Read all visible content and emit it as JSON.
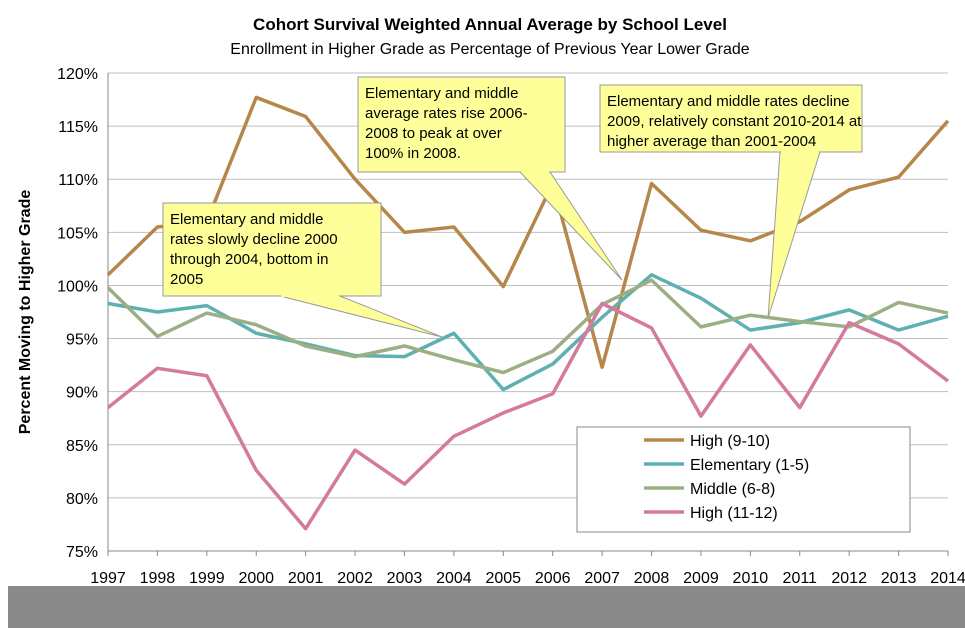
{
  "chart_data": {
    "type": "line",
    "title": "Cohort Survival Weighted Annual Average by School Level",
    "subtitle": "Enrollment in Higher Grade as Percentage of Previous Year Lower Grade",
    "y_label": "Percent Moving to Higher Grade",
    "categories": [
      "1997",
      "1998",
      "1999",
      "2000",
      "2001",
      "2002",
      "2003",
      "2004",
      "2005",
      "2006",
      "2007",
      "2008",
      "2009",
      "2010",
      "2011",
      "2012",
      "2013",
      "2014"
    ],
    "series": [
      {
        "name": "High (9-10)",
        "color": "#b5874a",
        "values": [
          101,
          105.5,
          106,
          117.7,
          115.9,
          110,
          105,
          105.5,
          99.9,
          109.6,
          92.3,
          109.6,
          105.2,
          104.2,
          106,
          109,
          110.2,
          115.5
        ]
      },
      {
        "name": "Elementary (1-5)",
        "color": "#5fb0b0",
        "values": [
          98.3,
          97.5,
          98.1,
          95.5,
          94.5,
          93.4,
          93.3,
          95.5,
          90.2,
          92.6,
          97,
          101,
          98.8,
          95.8,
          96.5,
          97.7,
          95.8,
          97.1
        ]
      },
      {
        "name": "Middle (6-8)",
        "color": "#9caf84",
        "values": [
          99.8,
          95.2,
          97.4,
          96.3,
          94.3,
          93.3,
          94.3,
          93,
          91.8,
          93.8,
          98.2,
          100.5,
          96.1,
          97.2,
          96.6,
          96.1,
          98.4,
          97.4
        ]
      },
      {
        "name": "High (11-12)",
        "color": "#d47a9c",
        "values": [
          88.5,
          92.2,
          91.5,
          82.6,
          77.1,
          84.5,
          81.3,
          85.8,
          88,
          89.8,
          98.3,
          96,
          87.7,
          94.4,
          88.5,
          96.5,
          94.5,
          91
        ]
      }
    ],
    "ylim": [
      75,
      120
    ],
    "yticks": [
      {
        "value": 75,
        "label": "75%"
      },
      {
        "value": 80,
        "label": "80%"
      },
      {
        "value": 85,
        "label": "85%"
      },
      {
        "value": 90,
        "label": "90%"
      },
      {
        "value": 95,
        "label": "95%"
      },
      {
        "value": 100,
        "label": "100%"
      },
      {
        "value": 105,
        "label": "105%"
      },
      {
        "value": 110,
        "label": "110%"
      },
      {
        "value": 115,
        "label": "115%"
      },
      {
        "value": 120,
        "label": "120%"
      }
    ],
    "grid": true,
    "annotations": [
      {
        "lines": [
          "Elementary and middle",
          "rates slowly decline 2000",
          "through 2004, bottom in",
          "2005"
        ]
      },
      {
        "lines": [
          "Elementary and middle",
          "average rates rise 2006-",
          "2008 to peak at over",
          "100% in 2008."
        ]
      },
      {
        "lines": [
          "Elementary and middle rates decline",
          "2009,  relatively constant 2010-2014 at",
          "higher average than 2001-2004"
        ]
      }
    ]
  }
}
